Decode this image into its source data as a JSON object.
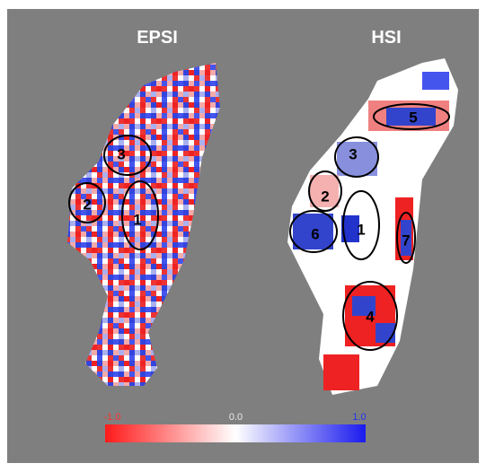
{
  "panels": [
    {
      "title": "EPSI",
      "regions": [
        "3",
        "2",
        "1"
      ]
    },
    {
      "title": "HSI",
      "regions": [
        "5",
        "3",
        "2",
        "6",
        "1",
        "7",
        "4"
      ]
    }
  ],
  "colorbar": {
    "ticks": [
      {
        "value": -1,
        "label": "-1.0"
      },
      {
        "value": 0,
        "label": "0.0"
      },
      {
        "value": 1,
        "label": "1.0"
      }
    ]
  }
}
